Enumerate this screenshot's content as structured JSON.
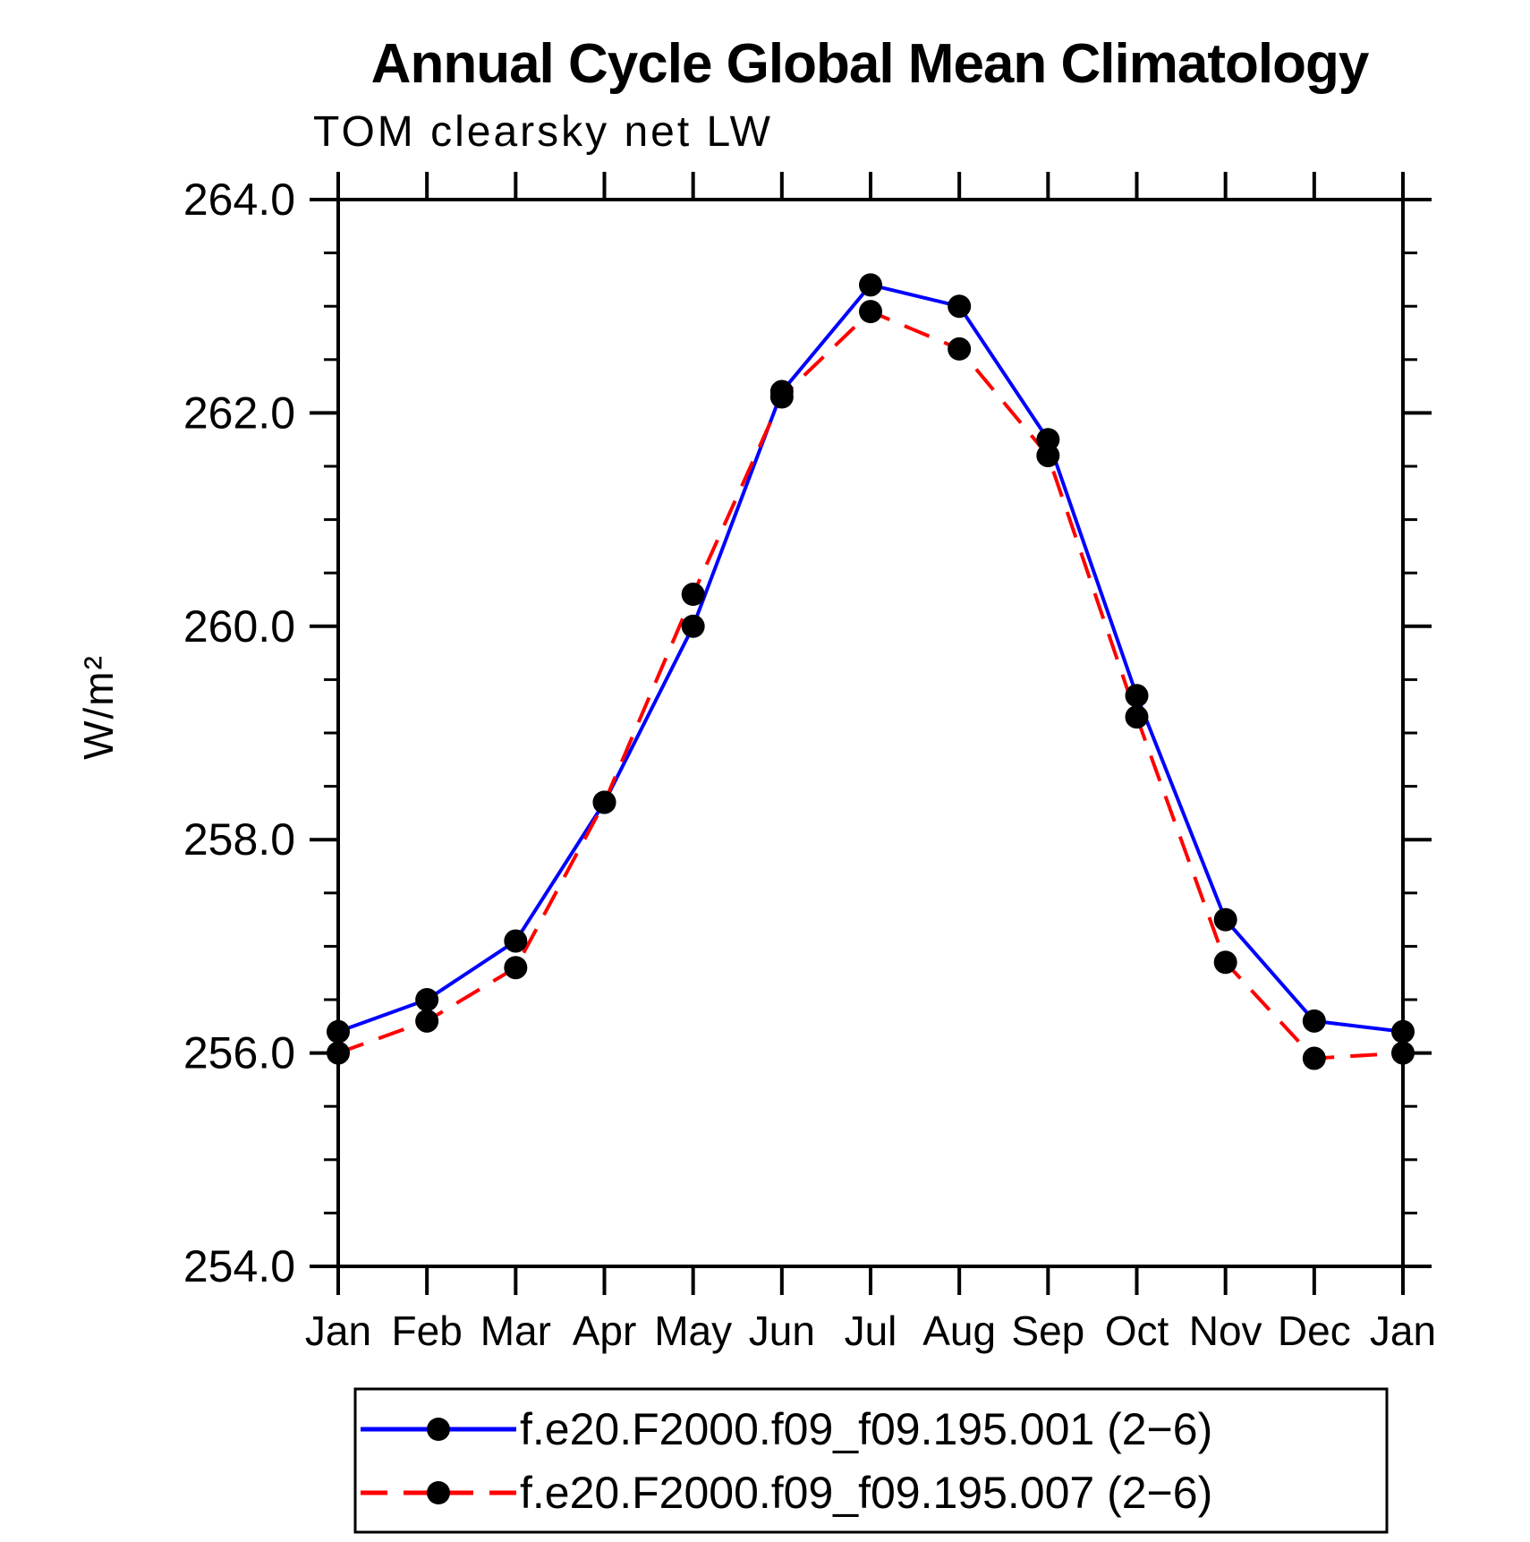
{
  "chart_data": {
    "type": "line",
    "title": "Annual Cycle Global Mean Climatology",
    "subtitle": "TOM clearsky net LW",
    "ylabel": "W/m²",
    "xlabel": "",
    "categories": [
      "Jan",
      "Feb",
      "Mar",
      "Apr",
      "May",
      "Jun",
      "Jul",
      "Aug",
      "Sep",
      "Oct",
      "Nov",
      "Dec",
      "Jan"
    ],
    "series": [
      {
        "name": "f.e20.F2000.f09_f09.195.001 (2−6)",
        "color": "#0000ff",
        "line_style": "solid",
        "marker": "filled-circle",
        "marker_color": "#000000",
        "values": [
          256.2,
          256.5,
          257.05,
          258.35,
          260.0,
          262.2,
          263.2,
          263.0,
          261.75,
          259.35,
          257.25,
          256.3,
          256.2
        ]
      },
      {
        "name": "f.e20.F2000.f09_f09.195.007 (2−6)",
        "color": "#ff0000",
        "line_style": "dashed",
        "marker": "filled-circle",
        "marker_color": "#000000",
        "values": [
          256.0,
          256.3,
          256.8,
          258.35,
          260.3,
          262.15,
          262.95,
          262.6,
          261.6,
          259.15,
          256.85,
          255.95,
          256.0
        ]
      }
    ],
    "ylim": [
      254.0,
      264.0
    ],
    "ytick_major_step": 2.0,
    "ytick_minor_step": 0.5,
    "ytick_labels": [
      "254.0",
      "256.0",
      "258.0",
      "260.0",
      "262.0",
      "264.0"
    ],
    "grid": false,
    "frame": true,
    "tick_direction": "out",
    "legend_position": "bottom",
    "colors": {
      "background": "#ffffff",
      "axis": "#000000",
      "series1": "#0000ff",
      "series2": "#ff0000",
      "marker": "#000000"
    }
  }
}
